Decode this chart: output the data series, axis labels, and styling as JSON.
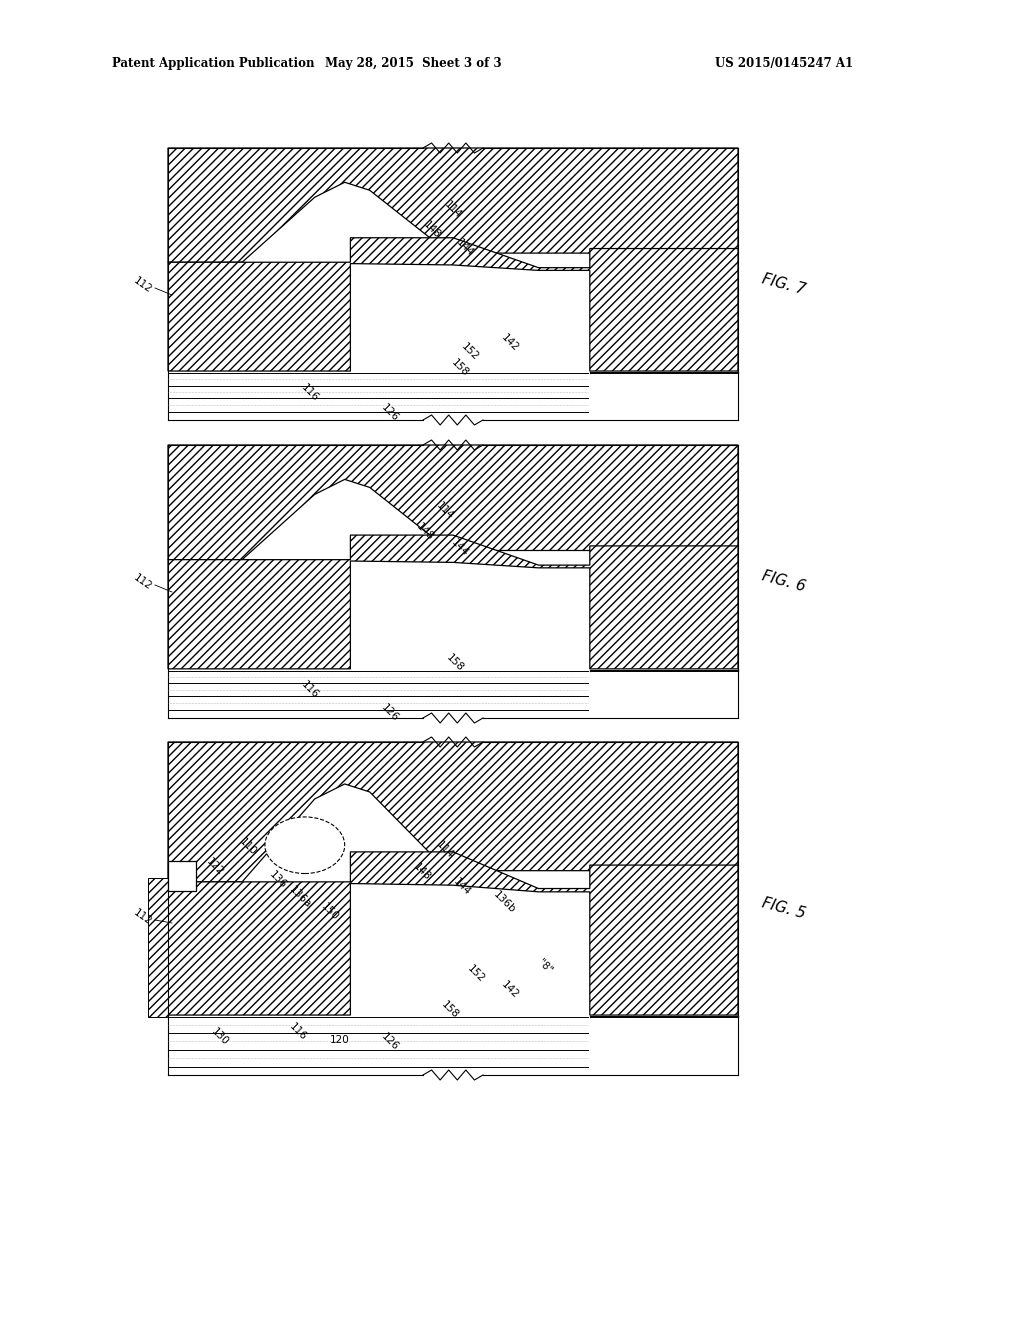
{
  "title_left": "Patent Application Publication",
  "title_mid": "May 28, 2015  Sheet 3 of 3",
  "title_right": "US 2015/0145247 A1",
  "bg": "#ffffff",
  "lc": "#000000",
  "panels": {
    "fig7": {
      "ts": 148,
      "bs": 420
    },
    "fig6": {
      "ts": 445,
      "bs": 718
    },
    "fig5": {
      "ts": 742,
      "bs": 1075
    }
  },
  "L": 168,
  "R": 738,
  "fig_labels": {
    "fig7": "FIG. 7",
    "fig6": "FIG. 6",
    "fig5": "FIG. 5"
  }
}
